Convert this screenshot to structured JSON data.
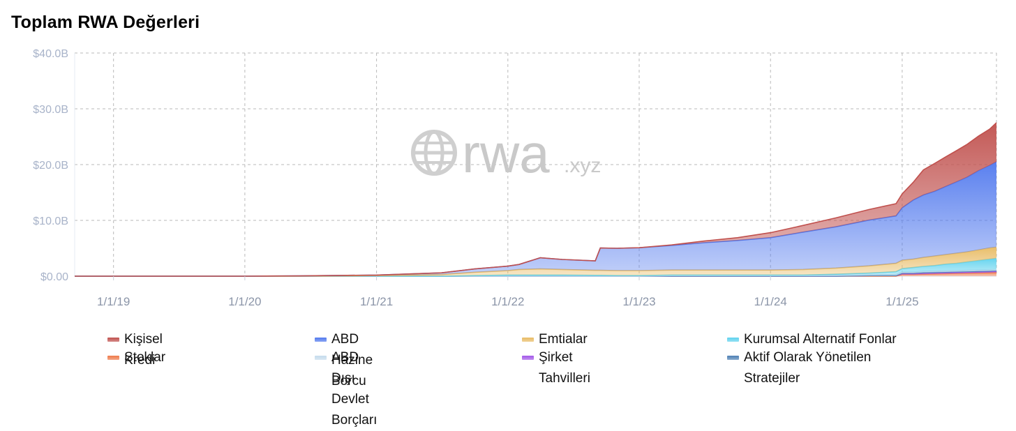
{
  "title": "Toplam RWA Değerleri",
  "watermark": {
    "brand": "rwa",
    "suffix": ".xyz",
    "icon": "globe-icon"
  },
  "chart_data": {
    "type": "area",
    "stacked": true,
    "ylim": [
      0,
      40
    ],
    "y_unit": "B USD",
    "yticks": [
      {
        "value": 0,
        "label": "$0.00"
      },
      {
        "value": 10,
        "label": "$10.0B"
      },
      {
        "value": 20,
        "label": "$20.0B"
      },
      {
        "value": 30,
        "label": "$30.0B"
      },
      {
        "value": 40,
        "label": "$40.0B"
      }
    ],
    "xlim": [
      "2018-09-15",
      "2025-09-20"
    ],
    "xticks": [
      {
        "value": "2019-01-01",
        "label": "1/1/19"
      },
      {
        "value": "2020-01-01",
        "label": "1/1/20"
      },
      {
        "value": "2021-01-01",
        "label": "1/1/21"
      },
      {
        "value": "2022-01-01",
        "label": "1/1/22"
      },
      {
        "value": "2023-01-01",
        "label": "1/1/23"
      },
      {
        "value": "2024-01-01",
        "label": "1/1/24"
      },
      {
        "value": "2025-01-01",
        "label": "1/1/25"
      }
    ],
    "grid": true,
    "legend_position": "bottom",
    "x": [
      "2018-09-15",
      "2019-06-01",
      "2020-01-01",
      "2020-06-01",
      "2021-01-01",
      "2021-04-01",
      "2021-07-01",
      "2021-10-01",
      "2022-01-01",
      "2022-02-01",
      "2022-04-01",
      "2022-06-01",
      "2022-09-01",
      "2022-09-15",
      "2022-11-01",
      "2023-01-01",
      "2023-04-01",
      "2023-07-01",
      "2023-10-01",
      "2024-01-01",
      "2024-04-01",
      "2024-07-01",
      "2024-10-01",
      "2024-12-15",
      "2025-01-01",
      "2025-02-01",
      "2025-03-01",
      "2025-04-01",
      "2025-05-01",
      "2025-06-01",
      "2025-07-01",
      "2025-08-01",
      "2025-09-01",
      "2025-09-20"
    ],
    "series": [
      {
        "name": "Stoklar",
        "color": "#ee7a4a",
        "values": [
          0,
          0,
          0,
          0,
          0,
          0,
          0,
          0,
          0,
          0,
          0,
          0,
          0,
          0,
          0,
          0,
          0,
          0,
          0,
          0,
          0,
          0,
          0,
          0,
          0.3,
          0.3,
          0.35,
          0.4,
          0.45,
          0.5,
          0.55,
          0.6,
          0.65,
          0.7
        ]
      },
      {
        "name": "Şirket Tahvilleri",
        "color": "#a257e8",
        "values": [
          0,
          0,
          0,
          0,
          0,
          0,
          0,
          0,
          0,
          0,
          0,
          0,
          0,
          0,
          0,
          0,
          0,
          0,
          0,
          0,
          0,
          0,
          0.1,
          0.1,
          0.15,
          0.15,
          0.2,
          0.2,
          0.2,
          0.2,
          0.2,
          0.2,
          0.2,
          0.2
        ]
      },
      {
        "name": "Aktif Olarak Yönetilen Stratejiler",
        "color": "#4e80b4",
        "values": [
          0,
          0,
          0,
          0,
          0,
          0,
          0,
          0,
          0,
          0,
          0,
          0,
          0,
          0,
          0,
          0,
          0,
          0,
          0,
          0,
          0,
          0,
          0,
          0,
          0.1,
          0.1,
          0.1,
          0.1,
          0.1,
          0.1,
          0.1,
          0.1,
          0.1,
          0.1
        ]
      },
      {
        "name": "ABD Dışı Devlet Borçları",
        "color": "#c5dbec",
        "values": [
          0,
          0,
          0,
          0,
          0,
          0,
          0,
          0,
          0,
          0,
          0,
          0,
          0,
          0,
          0,
          0,
          0.1,
          0.1,
          0.1,
          0.1,
          0.1,
          0.15,
          0.15,
          0.2,
          0.2,
          0.2,
          0.2,
          0.2,
          0.2,
          0.2,
          0.2,
          0.2,
          0.2,
          0.2
        ]
      },
      {
        "name": "Kurumsal Alternatif Fonlar",
        "color": "#5fd2ee",
        "values": [
          0,
          0,
          0,
          0,
          0,
          0,
          0,
          0.1,
          0.2,
          0.2,
          0.2,
          0.2,
          0.15,
          0.15,
          0.1,
          0.1,
          0.1,
          0.1,
          0.1,
          0.1,
          0.1,
          0.2,
          0.3,
          0.5,
          0.6,
          0.8,
          0.9,
          1.0,
          1.2,
          1.3,
          1.5,
          1.7,
          1.9,
          2.0
        ]
      },
      {
        "name": "Emtialar",
        "color": "#e8bb63",
        "values": [
          0,
          0,
          0,
          0,
          0.1,
          0.2,
          0.3,
          0.6,
          0.8,
          1.0,
          1.1,
          1.0,
          0.9,
          0.9,
          0.9,
          0.9,
          0.9,
          0.9,
          0.9,
          0.9,
          1.0,
          1.1,
          1.3,
          1.5,
          1.5,
          1.5,
          1.6,
          1.7,
          1.7,
          1.8,
          1.8,
          1.9,
          2.0,
          2.0
        ]
      },
      {
        "name": "ABD Hazine Borcu",
        "color": "#5179ee",
        "values": [
          0,
          0,
          0,
          0.05,
          0.1,
          0.2,
          0.3,
          0.6,
          0.8,
          0.9,
          2.0,
          1.8,
          1.7,
          4.0,
          4.0,
          4.1,
          4.4,
          4.9,
          5.3,
          5.8,
          6.7,
          7.4,
          8.2,
          8.5,
          9.4,
          10.6,
          11.2,
          11.6,
          12.2,
          12.8,
          13.4,
          14.2,
          14.8,
          15.3
        ]
      },
      {
        "name": "Kişisel Kredi",
        "color": "#c0504d",
        "values": [
          0,
          0,
          0,
          0,
          0,
          0,
          0,
          0,
          0,
          0,
          0,
          0,
          0,
          0,
          0,
          0,
          0.1,
          0.3,
          0.5,
          0.9,
          1.2,
          1.6,
          1.9,
          2.2,
          2.5,
          3.2,
          4.5,
          5.0,
          5.3,
          5.6,
          5.9,
          6.2,
          6.5,
          7.0
        ]
      }
    ]
  },
  "legend": [
    {
      "name": "Kişisel Kredi",
      "color": "#c0504d"
    },
    {
      "name": "Stoklar",
      "color": "#ee7a4a"
    },
    {
      "name": "ABD Hazine Borcu",
      "color": "#5179ee"
    },
    {
      "name": "ABD Dışı Devlet Borçları",
      "color": "#c5dbec"
    },
    {
      "name": "Emtialar",
      "color": "#e8bb63"
    },
    {
      "name": "Şirket Tahvilleri",
      "color": "#a257e8"
    },
    {
      "name": "Kurumsal Alternatif Fonlar",
      "color": "#5fd2ee"
    },
    {
      "name": "Aktif Olarak Yönetilen Stratejiler",
      "color": "#4e80b4"
    }
  ]
}
